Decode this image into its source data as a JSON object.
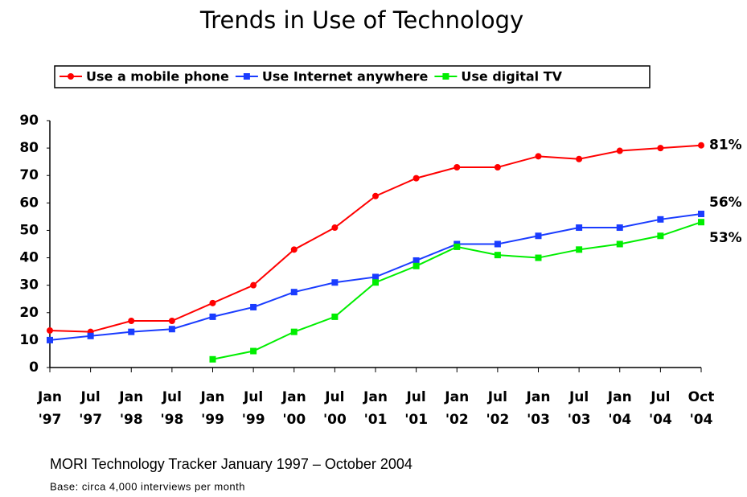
{
  "chart_data": {
    "type": "line",
    "title": "Trends in Use of Technology",
    "categories": [
      "Jan '97",
      "Jul '97",
      "Jan '98",
      "Jul '98",
      "Jan '99",
      "Jul '99",
      "Jan '00",
      "Jul '00",
      "Jan '01",
      "Jul '01",
      "Jan '02",
      "Jul '02",
      "Jan '03",
      "Jul '03",
      "Jan '04",
      "Jul '04",
      "Oct '04"
    ],
    "series": [
      {
        "name": "Use a mobile phone",
        "color": "#ff0000",
        "marker": "circle",
        "values": [
          13.5,
          13,
          17,
          17,
          23.5,
          30,
          43,
          51,
          62.5,
          69,
          73,
          73,
          77,
          76,
          79,
          80,
          81
        ],
        "value_labels": [
          null,
          null,
          null,
          null,
          null,
          null,
          null,
          null,
          null,
          null,
          null,
          null,
          null,
          null,
          null,
          null,
          "81%"
        ]
      },
      {
        "name": "Use Internet anywhere",
        "color": "#1a3cff",
        "marker": "square",
        "values": [
          10,
          11.5,
          13,
          14,
          18.5,
          22,
          27.5,
          31,
          33,
          39,
          45,
          45,
          48,
          51,
          51,
          54,
          56
        ],
        "value_labels": [
          null,
          null,
          null,
          null,
          null,
          null,
          null,
          null,
          null,
          null,
          null,
          null,
          null,
          null,
          null,
          null,
          "56%"
        ]
      },
      {
        "name": "Use digital TV",
        "color": "#00ee00",
        "marker": "square",
        "values": [
          null,
          null,
          null,
          null,
          3,
          6,
          13,
          18.5,
          31,
          37,
          44,
          41,
          40,
          43,
          45,
          48,
          53
        ],
        "value_labels": [
          null,
          null,
          null,
          null,
          null,
          null,
          null,
          null,
          null,
          null,
          null,
          null,
          null,
          null,
          null,
          null,
          "53%"
        ]
      }
    ],
    "ylim": [
      0,
      90
    ],
    "yticks": [
      0,
      10,
      20,
      30,
      40,
      50,
      60,
      70,
      80,
      90
    ],
    "grid": false,
    "footnotes": [
      "MORI Technology Tracker January 1997 – October  2004",
      "Base: circa 4,000 interviews per month"
    ]
  }
}
